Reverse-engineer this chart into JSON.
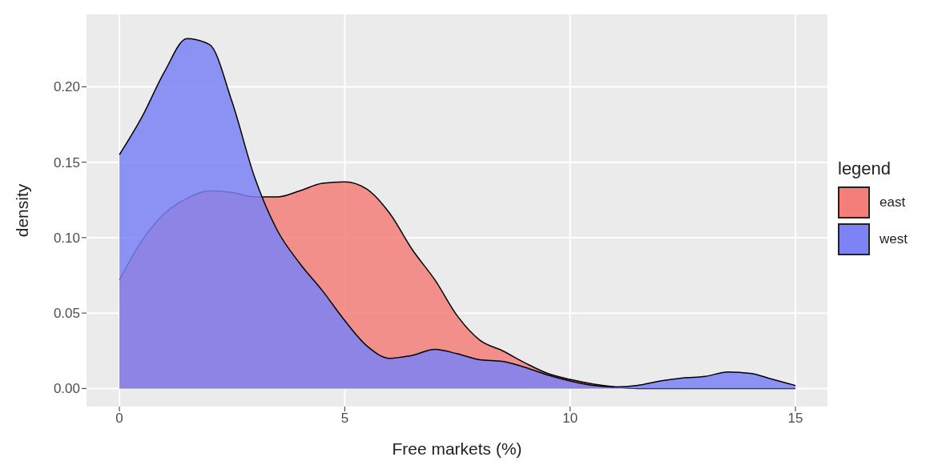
{
  "chart_data": {
    "type": "area",
    "xlabel": "Free markets (%)",
    "ylabel": "density",
    "legend_title": "legend",
    "legend": "right",
    "grid": true,
    "x": [
      0,
      0.5,
      1,
      1.5,
      2,
      2.5,
      3,
      3.5,
      4,
      4.5,
      5,
      5.5,
      6,
      6.5,
      7,
      7.5,
      8,
      8.5,
      9,
      9.5,
      10,
      10.5,
      11,
      11.5,
      12,
      12.5,
      13,
      13.5,
      14,
      14.5,
      15
    ],
    "series": [
      {
        "name": "east",
        "color": "#f47f7a",
        "values": [
          0.072,
          0.098,
          0.116,
          0.126,
          0.131,
          0.13,
          0.127,
          0.127,
          0.131,
          0.136,
          0.137,
          0.132,
          0.116,
          0.092,
          0.072,
          0.048,
          0.032,
          0.025,
          0.017,
          0.01,
          0.006,
          0.003,
          0.001,
          0,
          0,
          0,
          0,
          0,
          0,
          0,
          0
        ]
      },
      {
        "name": "west",
        "color": "#7b83f5",
        "values": [
          0.155,
          0.18,
          0.21,
          0.232,
          0.228,
          0.19,
          0.14,
          0.105,
          0.083,
          0.065,
          0.045,
          0.028,
          0.02,
          0.022,
          0.026,
          0.023,
          0.019,
          0.018,
          0.014,
          0.009,
          0.005,
          0.002,
          0.001,
          0.002,
          0.005,
          0.007,
          0.008,
          0.011,
          0.01,
          0.006,
          0.002
        ]
      }
    ],
    "xlim": [
      -0.73,
      15.71
    ],
    "xticks": [
      0,
      5,
      10,
      15
    ],
    "ylim": [
      -0.012,
      0.248
    ],
    "yticks": [
      {
        "value": 0,
        "label": "0.00"
      },
      {
        "value": 0.05,
        "label": "0.05"
      },
      {
        "value": 0.1,
        "label": "0.10"
      },
      {
        "value": 0.15,
        "label": "0.15"
      },
      {
        "value": 0.2,
        "label": "0.20"
      }
    ]
  }
}
